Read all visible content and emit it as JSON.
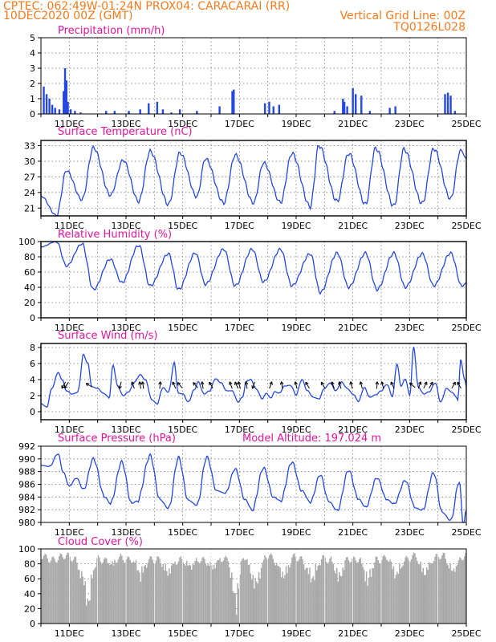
{
  "header": {
    "line1_left": "CPTEC:   062:49W-01:24N   PROX04: CARACARAI (RR)",
    "line2_left": "10DEC2020 00Z (GMT)",
    "line2_right": "Vertical Grid Line: 00Z",
    "line3_right": "TQ0126L028"
  },
  "colors": {
    "header": "#f47b20",
    "title": "#e0169c",
    "series": "#2448e0",
    "cloud": "#a9a9a9",
    "frame": "#000000"
  },
  "chart_data": [
    {
      "type": "bar",
      "title": "Precipitation (mm/h)",
      "ylim": [
        0,
        5
      ],
      "yticks": [
        0,
        1,
        2,
        3,
        4,
        5
      ],
      "xlim": [
        10.0,
        25.0
      ],
      "xtick_labels": [
        "11DEC",
        "13DEC",
        "15DEC",
        "17DEC",
        "19DEC",
        "21DEC",
        "23DEC",
        "25DEC"
      ],
      "bars": [
        [
          10.1,
          1.8
        ],
        [
          10.2,
          1.3
        ],
        [
          10.3,
          1.0
        ],
        [
          10.4,
          0.6
        ],
        [
          10.5,
          0.4
        ],
        [
          10.65,
          0.3
        ],
        [
          10.8,
          1.5
        ],
        [
          10.85,
          3.0
        ],
        [
          10.9,
          2.2
        ],
        [
          10.95,
          0.8
        ],
        [
          11.05,
          0.3
        ],
        [
          11.2,
          0.2
        ],
        [
          11.4,
          0.1
        ],
        [
          12.3,
          0.2
        ],
        [
          12.6,
          0.2
        ],
        [
          13.1,
          0.2
        ],
        [
          13.5,
          0.3
        ],
        [
          13.8,
          0.7
        ],
        [
          14.1,
          0.8
        ],
        [
          14.3,
          0.3
        ],
        [
          14.6,
          0.1
        ],
        [
          14.9,
          0.3
        ],
        [
          15.5,
          0.2
        ],
        [
          16.3,
          0.5
        ],
        [
          16.75,
          1.5
        ],
        [
          16.8,
          1.6
        ],
        [
          17.9,
          0.7
        ],
        [
          18.05,
          0.8
        ],
        [
          18.2,
          0.5
        ],
        [
          18.4,
          0.6
        ],
        [
          20.35,
          0.2
        ],
        [
          20.65,
          1.0
        ],
        [
          20.7,
          0.8
        ],
        [
          20.8,
          0.5
        ],
        [
          21.0,
          1.7
        ],
        [
          21.1,
          1.3
        ],
        [
          21.3,
          1.2
        ],
        [
          21.6,
          0.2
        ],
        [
          22.3,
          0.4
        ],
        [
          22.5,
          0.5
        ],
        [
          24.25,
          1.3
        ],
        [
          24.35,
          1.4
        ],
        [
          24.45,
          1.2
        ],
        [
          24.6,
          0.2
        ]
      ]
    },
    {
      "type": "line",
      "title": "Surface Temperature (nC)",
      "ylim": [
        19.5,
        34
      ],
      "yticks": [
        21,
        24,
        27,
        30,
        33
      ],
      "xlim": [
        10.0,
        25.0
      ],
      "xtick_labels": [
        "11DEC",
        "13DEC",
        "15DEC",
        "17DEC",
        "19DEC",
        "21DEC",
        "23DEC",
        "25DEC"
      ],
      "mins": [
        [
          10.55,
          19.6
        ],
        [
          11.45,
          22.6
        ],
        [
          12.45,
          23.5
        ],
        [
          13.45,
          22.3
        ],
        [
          14.5,
          21.7
        ],
        [
          15.5,
          23.2
        ],
        [
          16.45,
          22.0
        ],
        [
          17.5,
          22.0
        ],
        [
          18.45,
          22.1
        ],
        [
          19.5,
          21.3
        ],
        [
          20.45,
          22.3
        ],
        [
          21.45,
          21.7
        ],
        [
          22.45,
          21.4
        ],
        [
          23.45,
          21.9
        ],
        [
          24.45,
          22.8
        ]
      ],
      "maxs": [
        [
          10.0,
          23.3
        ],
        [
          10.9,
          28.2
        ],
        [
          11.85,
          32.6
        ],
        [
          12.9,
          30.2
        ],
        [
          13.85,
          31.9
        ],
        [
          14.9,
          31.6
        ],
        [
          15.8,
          30.5
        ],
        [
          16.85,
          31.2
        ],
        [
          17.85,
          29.7
        ],
        [
          18.85,
          31.5
        ],
        [
          19.8,
          33.0
        ],
        [
          20.85,
          31.5
        ],
        [
          21.8,
          32.5
        ],
        [
          22.8,
          32.3
        ],
        [
          23.85,
          32.4
        ],
        [
          24.8,
          32.2
        ],
        [
          25.0,
          30.5
        ]
      ]
    },
    {
      "type": "line",
      "title": "Relative Humidity (%)",
      "ylim": [
        0,
        100
      ],
      "yticks": [
        0,
        20,
        40,
        60,
        80,
        100
      ],
      "xlim": [
        10.0,
        25.0
      ],
      "xtick_labels": [
        "11DEC",
        "13DEC",
        "15DEC",
        "17DEC",
        "19DEC",
        "21DEC",
        "23DEC",
        "25DEC"
      ],
      "mins": [
        [
          10.9,
          68
        ],
        [
          11.85,
          37
        ],
        [
          12.85,
          46
        ],
        [
          13.85,
          42
        ],
        [
          14.85,
          37
        ],
        [
          15.8,
          44
        ],
        [
          16.85,
          42
        ],
        [
          17.85,
          47
        ],
        [
          18.85,
          42
        ],
        [
          19.85,
          33
        ],
        [
          20.85,
          40
        ],
        [
          21.85,
          37
        ],
        [
          22.85,
          40
        ],
        [
          23.85,
          42
        ],
        [
          24.85,
          41
        ]
      ],
      "maxs": [
        [
          10.0,
          93
        ],
        [
          10.55,
          100
        ],
        [
          11.45,
          97
        ],
        [
          12.45,
          77
        ],
        [
          13.45,
          95
        ],
        [
          14.5,
          84
        ],
        [
          15.45,
          85
        ],
        [
          16.45,
          90
        ],
        [
          17.45,
          90
        ],
        [
          18.45,
          90
        ],
        [
          19.5,
          84
        ],
        [
          20.45,
          85
        ],
        [
          21.45,
          85
        ],
        [
          22.45,
          85
        ],
        [
          23.45,
          84
        ],
        [
          24.45,
          85
        ],
        [
          25.0,
          46
        ]
      ]
    },
    {
      "type": "line",
      "title": "Surface Wind (m/s)",
      "ylim": [
        -1,
        8.5
      ],
      "yticks": [
        0,
        2,
        4,
        6,
        8
      ],
      "xlim": [
        10.0,
        25.0
      ],
      "xtick_labels": [
        "11DEC",
        "13DEC",
        "15DEC",
        "17DEC",
        "19DEC",
        "21DEC",
        "23DEC",
        "25DEC"
      ],
      "points": [
        [
          10.0,
          1.0
        ],
        [
          10.2,
          0.6
        ],
        [
          10.4,
          3.0
        ],
        [
          10.6,
          4.9
        ],
        [
          10.75,
          4.0
        ],
        [
          10.9,
          2.6
        ],
        [
          11.1,
          2.2
        ],
        [
          11.3,
          2.4
        ],
        [
          11.5,
          7.1
        ],
        [
          11.65,
          6.0
        ],
        [
          11.8,
          3.1
        ],
        [
          12.0,
          2.9
        ],
        [
          12.2,
          2.3
        ],
        [
          12.4,
          1.8
        ],
        [
          12.55,
          5.8
        ],
        [
          12.7,
          3.2
        ],
        [
          12.9,
          2.0
        ],
        [
          13.1,
          2.5
        ],
        [
          13.3,
          3.7
        ],
        [
          13.5,
          4.6
        ],
        [
          13.7,
          3.9
        ],
        [
          13.9,
          1.5
        ],
        [
          14.1,
          1.0
        ],
        [
          14.3,
          3.0
        ],
        [
          14.5,
          2.4
        ],
        [
          14.7,
          6.0
        ],
        [
          14.85,
          2.3
        ],
        [
          15.0,
          2.2
        ],
        [
          15.2,
          1.2
        ],
        [
          15.4,
          2.7
        ],
        [
          15.55,
          3.7
        ],
        [
          15.75,
          2.2
        ],
        [
          15.95,
          2.6
        ],
        [
          16.15,
          4.1
        ],
        [
          16.35,
          3.6
        ],
        [
          16.55,
          2.6
        ],
        [
          16.75,
          2.6
        ],
        [
          16.95,
          1.2
        ],
        [
          17.1,
          1.8
        ],
        [
          17.25,
          3.8
        ],
        [
          17.4,
          4.0
        ],
        [
          17.6,
          2.8
        ],
        [
          17.8,
          1.6
        ],
        [
          17.95,
          2.3
        ],
        [
          18.1,
          1.7
        ],
        [
          18.25,
          2.5
        ],
        [
          18.4,
          2.3
        ],
        [
          18.6,
          3.2
        ],
        [
          18.8,
          3.3
        ],
        [
          19.0,
          2.1
        ],
        [
          19.2,
          4.0
        ],
        [
          19.4,
          2.6
        ],
        [
          19.6,
          1.8
        ],
        [
          19.8,
          1.6
        ],
        [
          20.0,
          2.9
        ],
        [
          20.2,
          3.6
        ],
        [
          20.4,
          2.6
        ],
        [
          20.6,
          3.7
        ],
        [
          20.8,
          2.9
        ],
        [
          21.0,
          2.2
        ],
        [
          21.2,
          1.3
        ],
        [
          21.4,
          3.0
        ],
        [
          21.6,
          1.8
        ],
        [
          21.8,
          2.1
        ],
        [
          22.0,
          2.6
        ],
        [
          22.2,
          3.4
        ],
        [
          22.4,
          1.9
        ],
        [
          22.55,
          6.0
        ],
        [
          22.7,
          3.2
        ],
        [
          22.85,
          4.1
        ],
        [
          23.0,
          2.1
        ],
        [
          23.15,
          8.0
        ],
        [
          23.3,
          3.1
        ],
        [
          23.5,
          2.2
        ],
        [
          23.7,
          2.5
        ],
        [
          23.9,
          3.6
        ],
        [
          24.1,
          1.2
        ],
        [
          24.3,
          2.9
        ],
        [
          24.5,
          2.4
        ],
        [
          24.7,
          1.6
        ],
        [
          24.8,
          6.4
        ],
        [
          24.95,
          4.0
        ],
        [
          25.0,
          3.1
        ]
      ],
      "arrows": [
        [
          10.8,
          210
        ],
        [
          10.9,
          215
        ],
        [
          11.7,
          300
        ],
        [
          12.8,
          195
        ],
        [
          13.25,
          340
        ],
        [
          13.5,
          350
        ],
        [
          13.6,
          350
        ],
        [
          14.2,
          5
        ],
        [
          14.7,
          335
        ],
        [
          14.9,
          320
        ],
        [
          15.45,
          320
        ],
        [
          15.7,
          350
        ],
        [
          16.0,
          330
        ],
        [
          16.7,
          340
        ],
        [
          16.9,
          335
        ],
        [
          17.0,
          345
        ],
        [
          17.25,
          350
        ],
        [
          17.5,
          200
        ],
        [
          18.1,
          20
        ],
        [
          18.5,
          350
        ],
        [
          19.0,
          345
        ],
        [
          19.4,
          330
        ],
        [
          19.95,
          330
        ],
        [
          20.3,
          340
        ],
        [
          20.55,
          345
        ],
        [
          20.95,
          345
        ],
        [
          21.3,
          345
        ],
        [
          21.85,
          5
        ],
        [
          22.05,
          345
        ],
        [
          22.4,
          335
        ],
        [
          23.1,
          310
        ],
        [
          23.35,
          20
        ],
        [
          23.55,
          25
        ],
        [
          23.75,
          30
        ],
        [
          24.55,
          30
        ],
        [
          24.75,
          330
        ]
      ]
    },
    {
      "type": "line",
      "title": "Surface Pressure (hPa)",
      "annotation": "Model Altitude: 197.024 m",
      "ylim": [
        980,
        992
      ],
      "yticks": [
        980,
        982,
        984,
        986,
        988,
        990,
        992
      ],
      "xlim": [
        10.0,
        25.0
      ],
      "xtick_labels": [
        "11DEC",
        "13DEC",
        "15DEC",
        "17DEC",
        "19DEC",
        "21DEC",
        "23DEC",
        "25DEC"
      ],
      "points": [
        [
          10.0,
          989
        ],
        [
          10.3,
          988.8
        ],
        [
          10.6,
          990.8
        ],
        [
          10.8,
          987.8
        ],
        [
          11.0,
          985.7
        ],
        [
          11.25,
          987.0
        ],
        [
          11.5,
          985.2
        ],
        [
          11.85,
          990.0
        ],
        [
          12.25,
          984.0
        ],
        [
          12.45,
          983.0
        ],
        [
          12.85,
          989.5
        ],
        [
          13.2,
          983.0
        ],
        [
          13.4,
          983.4
        ],
        [
          13.85,
          990.5
        ],
        [
          14.2,
          983.6
        ],
        [
          14.5,
          982.2
        ],
        [
          14.85,
          990.2
        ],
        [
          15.2,
          983.5
        ],
        [
          15.5,
          982.7
        ],
        [
          15.85,
          990.3
        ],
        [
          16.2,
          985.0
        ],
        [
          16.5,
          984.6
        ],
        [
          16.85,
          988.4
        ],
        [
          17.2,
          983.6
        ],
        [
          17.45,
          982.0
        ],
        [
          17.85,
          988.6
        ],
        [
          18.2,
          984.0
        ],
        [
          18.45,
          983.4
        ],
        [
          18.85,
          989.5
        ],
        [
          19.2,
          985.0
        ],
        [
          19.5,
          983.2
        ],
        [
          19.85,
          987.5
        ],
        [
          20.15,
          983.3
        ],
        [
          20.45,
          981.9
        ],
        [
          20.85,
          988.2
        ],
        [
          21.2,
          983.7
        ],
        [
          21.45,
          982.4
        ],
        [
          21.85,
          987.0
        ],
        [
          22.2,
          983.6
        ],
        [
          22.45,
          982.9
        ],
        [
          22.85,
          986.6
        ],
        [
          23.2,
          982.3
        ],
        [
          23.45,
          981.9
        ],
        [
          23.85,
          987.8
        ],
        [
          24.15,
          981.6
        ],
        [
          24.45,
          980.3
        ],
        [
          24.75,
          986.4
        ],
        [
          24.9,
          979.5
        ],
        [
          25.0,
          982.0
        ]
      ]
    },
    {
      "type": "bar",
      "title": "Cloud Cover (%)",
      "ylim": [
        0,
        100
      ],
      "yticks": [
        0,
        20,
        40,
        60,
        80,
        100
      ],
      "xlim": [
        10.0,
        25.0
      ],
      "xtick_labels": [
        "11DEC",
        "13DEC",
        "15DEC",
        "17DEC",
        "19DEC",
        "21DEC",
        "23DEC",
        "25DEC"
      ],
      "base_level": 88,
      "dips": [
        [
          11.2,
          12.0,
          32
        ],
        [
          11.5,
          11.8,
          15
        ],
        [
          12.2,
          12.8,
          75
        ],
        [
          13.2,
          13.8,
          55
        ],
        [
          14.1,
          14.8,
          60
        ],
        [
          14.9,
          15.6,
          70
        ],
        [
          15.7,
          16.4,
          70
        ],
        [
          16.6,
          17.1,
          3
        ],
        [
          17.2,
          17.9,
          40
        ],
        [
          18.2,
          18.9,
          55
        ],
        [
          19.2,
          19.9,
          48
        ],
        [
          20.2,
          20.8,
          50
        ],
        [
          21.2,
          21.8,
          45
        ],
        [
          22.2,
          22.8,
          55
        ],
        [
          23.2,
          23.8,
          60
        ],
        [
          24.2,
          24.8,
          65
        ]
      ]
    }
  ]
}
